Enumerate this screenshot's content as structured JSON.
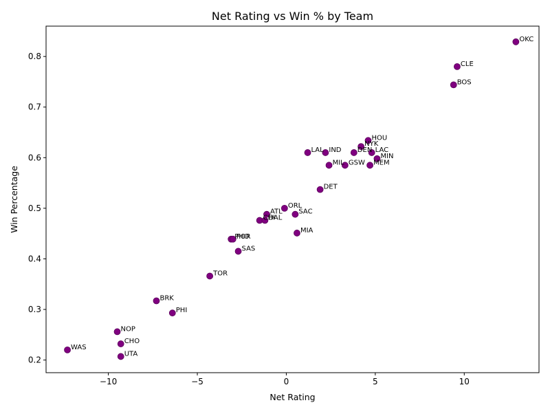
{
  "chart_data": {
    "type": "scatter",
    "title": "Net Rating vs Win % by Team",
    "xlabel": "Net Rating",
    "ylabel": "Win Percentage",
    "xlim": [
      -13.5,
      14.2
    ],
    "ylim": [
      0.175,
      0.86
    ],
    "xticks": [
      -10,
      -5,
      0,
      5,
      10
    ],
    "yticks": [
      0.2,
      0.3,
      0.4,
      0.5,
      0.6,
      0.7,
      0.8
    ],
    "grid": false,
    "legend": "none",
    "marker_color": "#800080",
    "points": [
      {
        "label": "OKC",
        "x": 12.9,
        "y": 0.829
      },
      {
        "label": "CLE",
        "x": 9.6,
        "y": 0.78
      },
      {
        "label": "BOS",
        "x": 9.4,
        "y": 0.744
      },
      {
        "label": "HOU",
        "x": 4.6,
        "y": 0.634
      },
      {
        "label": "NYK",
        "x": 4.2,
        "y": 0.622
      },
      {
        "label": "DEN",
        "x": 3.8,
        "y": 0.61
      },
      {
        "label": "LAC",
        "x": 4.8,
        "y": 0.61
      },
      {
        "label": "MIN",
        "x": 5.1,
        "y": 0.598
      },
      {
        "label": "MEM",
        "x": 4.7,
        "y": 0.585
      },
      {
        "label": "LAL",
        "x": 1.2,
        "y": 0.61
      },
      {
        "label": "IND",
        "x": 2.2,
        "y": 0.61
      },
      {
        "label": "MIL",
        "x": 2.4,
        "y": 0.585
      },
      {
        "label": "GSW",
        "x": 3.3,
        "y": 0.585
      },
      {
        "label": "DET",
        "x": 1.9,
        "y": 0.537
      },
      {
        "label": "ORL",
        "x": -0.1,
        "y": 0.5
      },
      {
        "label": "SAC",
        "x": 0.5,
        "y": 0.488
      },
      {
        "label": "ATL",
        "x": -1.1,
        "y": 0.488
      },
      {
        "label": "CHI",
        "x": -1.5,
        "y": 0.476
      },
      {
        "label": "DAL",
        "x": -1.2,
        "y": 0.476
      },
      {
        "label": "MIA",
        "x": 0.6,
        "y": 0.451
      },
      {
        "label": "PHO",
        "x": -3.1,
        "y": 0.439
      },
      {
        "label": "POR",
        "x": -3.0,
        "y": 0.439
      },
      {
        "label": "SAS",
        "x": -2.7,
        "y": 0.415
      },
      {
        "label": "TOR",
        "x": -4.3,
        "y": 0.366
      },
      {
        "label": "BRK",
        "x": -7.3,
        "y": 0.317
      },
      {
        "label": "PHI",
        "x": -6.4,
        "y": 0.293
      },
      {
        "label": "NOP",
        "x": -9.5,
        "y": 0.256
      },
      {
        "label": "CHO",
        "x": -9.3,
        "y": 0.232
      },
      {
        "label": "WAS",
        "x": -12.3,
        "y": 0.22
      },
      {
        "label": "UTA",
        "x": -9.3,
        "y": 0.207
      }
    ]
  }
}
